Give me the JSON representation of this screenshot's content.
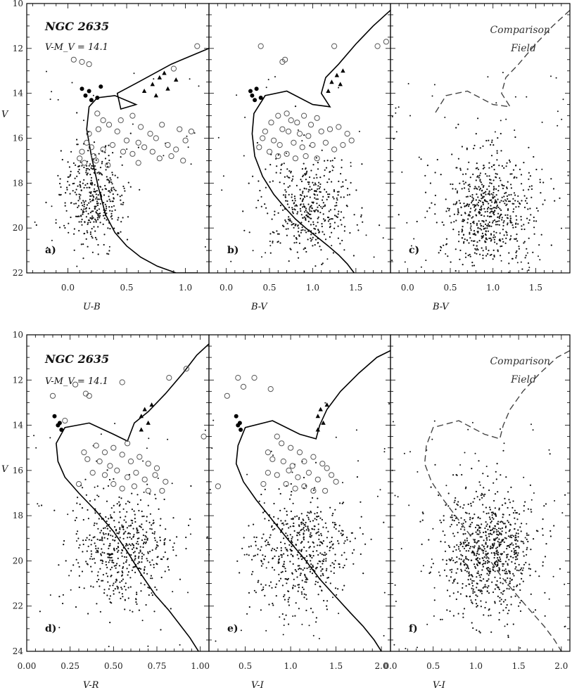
{
  "chart_data": [
    {
      "id": "a",
      "panel_label": "a)",
      "type": "scatter",
      "title": "NGC 2635",
      "subtitle": "V-M_V = 14.1",
      "xlabel": "U-B",
      "ylabel": "V",
      "xlim": [
        -0.35,
        1.2
      ],
      "ylim": [
        22,
        10
      ],
      "xticks": [
        0.0,
        0.5,
        1.0
      ],
      "xtick_labels": [
        "0.0",
        "0.5",
        "1.0"
      ],
      "yticks": [
        10,
        12,
        14,
        16,
        18,
        20,
        22
      ],
      "ytick_labels": [
        "10",
        "12",
        "14",
        "16",
        "18",
        "20",
        "22"
      ],
      "isochrone": {
        "style": "solid",
        "x": [
          1.2,
          0.88,
          0.6,
          0.42,
          0.45,
          0.58,
          0.4,
          0.25,
          0.18,
          0.16,
          0.2,
          0.26,
          0.32,
          0.4,
          0.5,
          0.62,
          0.76,
          0.92,
          1.05,
          1.1
        ],
        "y": [
          12.0,
          12.7,
          13.5,
          14.0,
          14.7,
          14.5,
          14.1,
          14.2,
          14.6,
          15.6,
          16.8,
          18.2,
          19.4,
          20.2,
          20.8,
          21.3,
          21.7,
          22.0,
          22.0,
          22.0
        ]
      },
      "field": {
        "center": [
          0.22,
          18.6
        ],
        "spread": [
          0.14,
          1.1
        ],
        "count": 380
      },
      "members_open": [
        [
          0.05,
          12.5
        ],
        [
          0.12,
          12.6
        ],
        [
          0.18,
          12.7
        ],
        [
          0.9,
          12.9
        ],
        [
          1.1,
          11.9
        ],
        [
          0.25,
          14.9
        ],
        [
          0.3,
          15.2
        ],
        [
          0.35,
          15.4
        ],
        [
          0.45,
          15.2
        ],
        [
          0.55,
          15.0
        ],
        [
          0.42,
          15.7
        ],
        [
          0.62,
          15.5
        ],
        [
          0.7,
          15.8
        ],
        [
          0.8,
          15.4
        ],
        [
          0.95,
          15.6
        ],
        [
          1.05,
          15.7
        ],
        [
          0.5,
          16.1
        ],
        [
          0.6,
          16.2
        ],
        [
          0.75,
          16.0
        ],
        [
          0.85,
          16.3
        ],
        [
          0.92,
          16.5
        ],
        [
          1.0,
          16.1
        ],
        [
          0.2,
          16.4
        ],
        [
          0.16,
          16.2
        ],
        [
          0.12,
          16.6
        ],
        [
          0.22,
          16.8
        ],
        [
          0.3,
          16.5
        ],
        [
          0.38,
          16.3
        ],
        [
          0.47,
          16.6
        ],
        [
          0.55,
          16.7
        ],
        [
          0.65,
          16.4
        ],
        [
          0.72,
          16.6
        ],
        [
          0.78,
          16.9
        ],
        [
          0.88,
          16.8
        ],
        [
          0.98,
          17.0
        ],
        [
          0.14,
          17.1
        ],
        [
          0.24,
          17.0
        ],
        [
          0.34,
          17.2
        ],
        [
          0.6,
          17.1
        ],
        [
          0.18,
          15.8
        ],
        [
          0.26,
          15.6
        ],
        [
          0.1,
          16.9
        ]
      ],
      "members_filled": [
        [
          0.12,
          13.8
        ],
        [
          0.15,
          14.1
        ],
        [
          0.2,
          14.3
        ],
        [
          0.18,
          13.9
        ],
        [
          0.25,
          14.2
        ],
        [
          0.28,
          13.7
        ]
      ],
      "members_triangle": [
        [
          0.65,
          13.9
        ],
        [
          0.72,
          13.6
        ],
        [
          0.78,
          13.3
        ],
        [
          0.82,
          13.1
        ],
        [
          0.75,
          14.1
        ],
        [
          0.85,
          13.8
        ],
        [
          0.92,
          13.4
        ]
      ]
    },
    {
      "id": "b",
      "panel_label": "b)",
      "type": "scatter",
      "xlabel": "B-V",
      "ylabel": "",
      "xlim": [
        -0.2,
        1.9
      ],
      "ylim": [
        22,
        10
      ],
      "xticks": [
        0.0,
        0.5,
        1.0,
        1.5
      ],
      "xtick_labels": [
        "0.0",
        "0.5",
        "1.0",
        "1.5"
      ],
      "isochrone": {
        "style": "solid",
        "x": [
          1.9,
          1.7,
          1.5,
          1.3,
          1.15,
          1.1,
          1.2,
          1.0,
          0.7,
          0.45,
          0.32,
          0.3,
          0.33,
          0.42,
          0.55,
          0.68,
          0.8,
          0.92,
          1.05,
          1.18,
          1.3,
          1.4,
          1.48
        ],
        "y": [
          10.3,
          11.0,
          11.8,
          12.7,
          13.3,
          14.0,
          14.6,
          14.5,
          13.9,
          14.1,
          14.9,
          15.8,
          16.8,
          17.7,
          18.5,
          19.1,
          19.6,
          20.0,
          20.4,
          20.8,
          21.2,
          21.6,
          22.0
        ]
      },
      "field": {
        "center": [
          0.95,
          19.0
        ],
        "spread": [
          0.26,
          1.1
        ],
        "count": 420
      },
      "members_open": [
        [
          0.4,
          11.9
        ],
        [
          0.65,
          12.6
        ],
        [
          0.68,
          12.5
        ],
        [
          1.25,
          11.9
        ],
        [
          1.75,
          11.9
        ],
        [
          1.85,
          11.7
        ],
        [
          0.6,
          15.0
        ],
        [
          0.7,
          14.9
        ],
        [
          0.75,
          15.2
        ],
        [
          0.82,
          15.3
        ],
        [
          0.9,
          15.0
        ],
        [
          0.98,
          15.4
        ],
        [
          1.05,
          15.1
        ],
        [
          0.65,
          15.6
        ],
        [
          0.72,
          15.7
        ],
        [
          0.85,
          15.8
        ],
        [
          0.95,
          15.9
        ],
        [
          1.1,
          15.7
        ],
        [
          1.2,
          15.6
        ],
        [
          1.3,
          15.5
        ],
        [
          1.4,
          15.8
        ],
        [
          0.55,
          16.1
        ],
        [
          0.62,
          16.3
        ],
        [
          0.78,
          16.2
        ],
        [
          0.88,
          16.4
        ],
        [
          1.0,
          16.3
        ],
        [
          1.15,
          16.2
        ],
        [
          1.25,
          16.5
        ],
        [
          1.35,
          16.3
        ],
        [
          0.5,
          16.6
        ],
        [
          0.6,
          16.8
        ],
        [
          0.7,
          16.7
        ],
        [
          0.8,
          16.9
        ],
        [
          0.92,
          16.8
        ],
        [
          1.05,
          16.9
        ],
        [
          0.45,
          15.7
        ],
        [
          0.52,
          15.3
        ],
        [
          1.45,
          16.1
        ],
        [
          0.38,
          16.4
        ],
        [
          0.42,
          16.0
        ]
      ],
      "members_filled": [
        [
          0.28,
          13.9
        ],
        [
          0.3,
          14.1
        ],
        [
          0.33,
          14.3
        ],
        [
          0.35,
          13.8
        ],
        [
          0.4,
          14.2
        ]
      ],
      "members_triangle": [
        [
          1.18,
          13.9
        ],
        [
          1.22,
          13.5
        ],
        [
          1.28,
          13.2
        ],
        [
          1.32,
          13.6
        ],
        [
          1.35,
          13.0
        ]
      ]
    },
    {
      "id": "c",
      "panel_label": "c)",
      "type": "scatter",
      "xlabel": "B-V",
      "ylabel": "",
      "xlim": [
        -0.2,
        1.9
      ],
      "ylim": [
        22,
        10
      ],
      "xticks": [
        0.0,
        0.5,
        1.0,
        1.5
      ],
      "xtick_labels": [
        "0.0",
        "0.5",
        "1.0",
        "1.5"
      ],
      "annotation": [
        "Comparison",
        "Field"
      ],
      "isochrone": {
        "style": "dashed",
        "x": [
          1.9,
          1.7,
          1.5,
          1.3,
          1.15,
          1.1,
          1.2,
          1.0,
          0.7,
          0.45,
          0.32
        ],
        "y": [
          10.3,
          11.0,
          11.8,
          12.7,
          13.3,
          14.0,
          14.6,
          14.5,
          13.9,
          14.1,
          14.9
        ]
      },
      "field": {
        "center": [
          0.95,
          19.2
        ],
        "spread": [
          0.28,
          1.3
        ],
        "count": 650
      },
      "members_open": [],
      "members_filled": [],
      "members_triangle": []
    },
    {
      "id": "d",
      "panel_label": "d)",
      "type": "scatter",
      "title": "NGC 2635",
      "subtitle": "V-M_V = 14.1",
      "xlabel": "V-R",
      "ylabel": "V",
      "xlim": [
        0.0,
        1.05
      ],
      "ylim": [
        24,
        10
      ],
      "xticks": [
        0.0,
        0.25,
        0.5,
        0.75,
        1.0
      ],
      "xtick_labels": [
        "0.00",
        "0.25",
        "0.50",
        "0.75",
        "1.00"
      ],
      "yticks": [
        10,
        12,
        14,
        16,
        18,
        20,
        22,
        24
      ],
      "ytick_labels": [
        "10",
        "12",
        "14",
        "16",
        "18",
        "20",
        "22",
        "24"
      ],
      "isochrone": {
        "style": "solid",
        "x": [
          1.05,
          0.98,
          0.9,
          0.8,
          0.7,
          0.62,
          0.58,
          0.5,
          0.36,
          0.22,
          0.17,
          0.18,
          0.22,
          0.3,
          0.4,
          0.5,
          0.58,
          0.66,
          0.74,
          0.82,
          0.88,
          0.94,
          0.99
        ],
        "y": [
          10.4,
          10.9,
          11.7,
          12.6,
          13.4,
          13.9,
          14.7,
          14.4,
          13.9,
          14.1,
          14.8,
          15.6,
          16.3,
          17.0,
          17.8,
          18.7,
          19.6,
          20.6,
          21.5,
          22.2,
          22.8,
          23.4,
          24.0
        ]
      },
      "field": {
        "center": [
          0.55,
          19.5
        ],
        "spread": [
          0.14,
          1.3
        ],
        "count": 520
      },
      "members_open": [
        [
          0.15,
          12.7
        ],
        [
          0.28,
          12.2
        ],
        [
          0.34,
          12.6
        ],
        [
          0.36,
          12.7
        ],
        [
          0.55,
          12.1
        ],
        [
          0.82,
          11.9
        ],
        [
          0.92,
          11.5
        ],
        [
          1.02,
          14.5
        ],
        [
          0.22,
          13.8
        ],
        [
          0.4,
          14.9
        ],
        [
          0.45,
          15.2
        ],
        [
          0.5,
          15.0
        ],
        [
          0.55,
          15.3
        ],
        [
          0.35,
          15.5
        ],
        [
          0.42,
          15.6
        ],
        [
          0.48,
          15.8
        ],
        [
          0.6,
          15.6
        ],
        [
          0.65,
          15.4
        ],
        [
          0.7,
          15.7
        ],
        [
          0.75,
          15.9
        ],
        [
          0.38,
          16.1
        ],
        [
          0.45,
          16.2
        ],
        [
          0.52,
          16.0
        ],
        [
          0.58,
          16.3
        ],
        [
          0.63,
          16.1
        ],
        [
          0.68,
          16.4
        ],
        [
          0.74,
          16.2
        ],
        [
          0.8,
          16.5
        ],
        [
          0.5,
          16.6
        ],
        [
          0.55,
          16.8
        ],
        [
          0.62,
          16.7
        ],
        [
          0.7,
          16.9
        ],
        [
          0.78,
          16.9
        ],
        [
          0.3,
          16.6
        ],
        [
          0.33,
          15.2
        ],
        [
          0.58,
          14.8
        ]
      ],
      "members_filled": [
        [
          0.16,
          13.6
        ],
        [
          0.18,
          14.0
        ],
        [
          0.2,
          14.2
        ],
        [
          0.19,
          13.9
        ]
      ],
      "members_triangle": [
        [
          0.66,
          13.6
        ],
        [
          0.68,
          13.3
        ],
        [
          0.7,
          13.9
        ],
        [
          0.72,
          13.1
        ],
        [
          0.66,
          14.2
        ]
      ]
    },
    {
      "id": "e",
      "panel_label": "e)",
      "type": "scatter",
      "xlabel": "V-I",
      "ylabel": "",
      "xlim": [
        0.1,
        2.1
      ],
      "ylim": [
        24,
        10
      ],
      "xticks": [
        0.5,
        1.0,
        1.5,
        2.0
      ],
      "xtick_labels": [
        "0.5",
        "1.0",
        "1.5",
        "2.0"
      ],
      "isochrone": {
        "style": "solid",
        "x": [
          2.1,
          1.95,
          1.75,
          1.55,
          1.4,
          1.32,
          1.28,
          1.1,
          0.8,
          0.5,
          0.42,
          0.4,
          0.48,
          0.62,
          0.8,
          0.98,
          1.15,
          1.32,
          1.5,
          1.66,
          1.8,
          1.92,
          2.0
        ],
        "y": [
          10.7,
          11.0,
          11.7,
          12.5,
          13.3,
          14.0,
          14.6,
          14.4,
          13.8,
          14.1,
          14.9,
          15.7,
          16.5,
          17.3,
          18.2,
          19.1,
          19.9,
          20.8,
          21.6,
          22.3,
          22.9,
          23.5,
          24.0
        ]
      },
      "field": {
        "center": [
          1.1,
          19.6
        ],
        "spread": [
          0.28,
          1.3
        ],
        "count": 520
      },
      "members_open": [
        [
          0.3,
          12.7
        ],
        [
          0.42,
          11.9
        ],
        [
          0.48,
          12.3
        ],
        [
          0.78,
          12.4
        ],
        [
          0.6,
          11.9
        ],
        [
          0.2,
          16.7
        ],
        [
          0.85,
          14.5
        ],
        [
          0.9,
          14.8
        ],
        [
          1.0,
          15.0
        ],
        [
          1.1,
          15.2
        ],
        [
          0.8,
          15.5
        ],
        [
          0.92,
          15.6
        ],
        [
          1.02,
          15.8
        ],
        [
          1.15,
          15.6
        ],
        [
          1.25,
          15.4
        ],
        [
          1.35,
          15.7
        ],
        [
          0.75,
          16.1
        ],
        [
          0.85,
          16.2
        ],
        [
          0.98,
          16.0
        ],
        [
          1.08,
          16.3
        ],
        [
          1.2,
          16.1
        ],
        [
          1.3,
          16.4
        ],
        [
          1.45,
          16.2
        ],
        [
          1.5,
          16.5
        ],
        [
          0.95,
          16.6
        ],
        [
          1.05,
          16.8
        ],
        [
          1.15,
          16.7
        ],
        [
          1.25,
          16.9
        ],
        [
          1.38,
          16.9
        ],
        [
          0.7,
          16.6
        ],
        [
          0.75,
          15.2
        ],
        [
          1.4,
          15.9
        ]
      ],
      "members_filled": [
        [
          0.4,
          13.6
        ],
        [
          0.42,
          14.0
        ],
        [
          0.45,
          14.2
        ],
        [
          0.44,
          13.9
        ]
      ],
      "members_triangle": [
        [
          1.3,
          13.6
        ],
        [
          1.33,
          13.3
        ],
        [
          1.36,
          13.9
        ],
        [
          1.4,
          13.1
        ],
        [
          1.3,
          14.2
        ]
      ]
    },
    {
      "id": "f",
      "panel_label": "f)",
      "type": "scatter",
      "xlabel": "V-I",
      "ylabel": "",
      "xlim": [
        0.0,
        2.1
      ],
      "ylim": [
        24,
        10
      ],
      "xticks": [
        0.0,
        0.5,
        1.0,
        1.5,
        2.0
      ],
      "xtick_labels": [
        "0.0",
        "0.5",
        "1.0",
        "1.5",
        "2.0"
      ],
      "annotation": [
        "Comparison",
        "Field"
      ],
      "isochrone": {
        "style": "dashed",
        "x": [
          2.1,
          1.95,
          1.75,
          1.55,
          1.4,
          1.32,
          1.28,
          1.1,
          0.8,
          0.5,
          0.42,
          0.4,
          0.48,
          0.62,
          0.8,
          0.98,
          1.15,
          1.32,
          1.5,
          1.66,
          1.8,
          1.92,
          2.0
        ],
        "y": [
          10.7,
          11.0,
          11.7,
          12.5,
          13.3,
          14.0,
          14.6,
          14.4,
          13.8,
          14.1,
          14.9,
          15.7,
          16.5,
          17.3,
          18.2,
          19.1,
          19.9,
          20.8,
          21.6,
          22.3,
          22.9,
          23.5,
          24.0
        ]
      },
      "field": {
        "center": [
          1.15,
          19.5
        ],
        "spread": [
          0.28,
          1.4
        ],
        "count": 800
      },
      "members_open": [],
      "members_filled": [],
      "members_triangle": []
    }
  ]
}
